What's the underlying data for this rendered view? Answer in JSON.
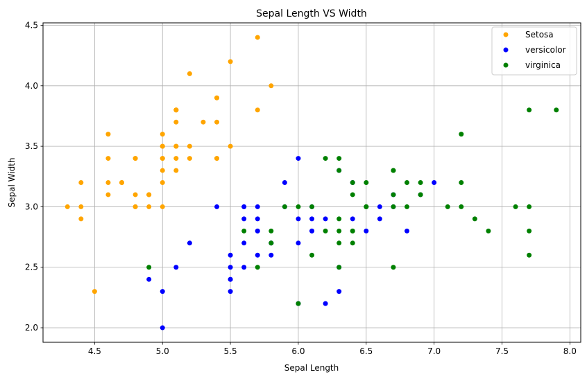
{
  "chart_data": {
    "type": "scatter",
    "title": "Sepal Length VS Width",
    "xlabel": "Sepal Length",
    "ylabel": "Sepal Width",
    "xlim": [
      4.12,
      8.08
    ],
    "ylim": [
      1.88,
      4.52
    ],
    "xticks": [
      "4.5",
      "5.0",
      "5.5",
      "6.0",
      "6.5",
      "7.0",
      "7.5",
      "8.0"
    ],
    "yticks": [
      "2.0",
      "2.5",
      "3.0",
      "3.5",
      "4.0",
      "4.5"
    ],
    "grid": true,
    "legend_position": "top-right",
    "series": [
      {
        "name": "Setosa",
        "color": "#ffa500",
        "points": [
          [
            5.1,
            3.5
          ],
          [
            4.9,
            3.0
          ],
          [
            4.7,
            3.2
          ],
          [
            4.6,
            3.1
          ],
          [
            5.0,
            3.6
          ],
          [
            5.4,
            3.9
          ],
          [
            4.6,
            3.4
          ],
          [
            5.0,
            3.4
          ],
          [
            4.4,
            2.9
          ],
          [
            4.9,
            3.1
          ],
          [
            5.4,
            3.7
          ],
          [
            4.8,
            3.4
          ],
          [
            4.8,
            3.0
          ],
          [
            4.3,
            3.0
          ],
          [
            5.8,
            4.0
          ],
          [
            5.7,
            4.4
          ],
          [
            5.4,
            3.9
          ],
          [
            5.1,
            3.5
          ],
          [
            5.7,
            3.8
          ],
          [
            5.1,
            3.8
          ],
          [
            5.4,
            3.4
          ],
          [
            5.1,
            3.7
          ],
          [
            4.6,
            3.6
          ],
          [
            5.1,
            3.3
          ],
          [
            4.8,
            3.4
          ],
          [
            5.0,
            3.0
          ],
          [
            5.0,
            3.4
          ],
          [
            5.2,
            3.5
          ],
          [
            5.2,
            3.4
          ],
          [
            4.7,
            3.2
          ],
          [
            4.8,
            3.1
          ],
          [
            5.4,
            3.4
          ],
          [
            5.2,
            4.1
          ],
          [
            5.5,
            4.2
          ],
          [
            4.9,
            3.1
          ],
          [
            5.0,
            3.2
          ],
          [
            5.5,
            3.5
          ],
          [
            4.9,
            3.1
          ],
          [
            4.4,
            3.0
          ],
          [
            5.1,
            3.4
          ],
          [
            5.0,
            3.5
          ],
          [
            4.5,
            2.3
          ],
          [
            4.4,
            3.2
          ],
          [
            5.0,
            3.5
          ],
          [
            5.1,
            3.8
          ],
          [
            4.8,
            3.0
          ],
          [
            5.1,
            3.8
          ],
          [
            4.6,
            3.2
          ],
          [
            5.3,
            3.7
          ],
          [
            5.0,
            3.3
          ]
        ]
      },
      {
        "name": "versicolor",
        "color": "#0000ff",
        "points": [
          [
            7.0,
            3.2
          ],
          [
            6.4,
            3.2
          ],
          [
            6.9,
            3.1
          ],
          [
            5.5,
            2.3
          ],
          [
            6.5,
            2.8
          ],
          [
            5.7,
            2.8
          ],
          [
            6.3,
            3.3
          ],
          [
            4.9,
            2.4
          ],
          [
            6.6,
            2.9
          ],
          [
            5.2,
            2.7
          ],
          [
            5.0,
            2.0
          ],
          [
            5.9,
            3.0
          ],
          [
            6.0,
            2.2
          ],
          [
            6.1,
            2.9
          ],
          [
            5.6,
            2.9
          ],
          [
            6.7,
            3.1
          ],
          [
            5.6,
            3.0
          ],
          [
            5.8,
            2.7
          ],
          [
            6.2,
            2.2
          ],
          [
            5.6,
            2.5
          ],
          [
            5.9,
            3.2
          ],
          [
            6.1,
            2.8
          ],
          [
            6.3,
            2.5
          ],
          [
            6.1,
            2.8
          ],
          [
            6.4,
            2.9
          ],
          [
            6.6,
            3.0
          ],
          [
            6.8,
            2.8
          ],
          [
            6.7,
            3.0
          ],
          [
            6.0,
            2.9
          ],
          [
            5.7,
            2.6
          ],
          [
            5.5,
            2.4
          ],
          [
            5.5,
            2.4
          ],
          [
            5.8,
            2.7
          ],
          [
            6.0,
            2.7
          ],
          [
            5.4,
            3.0
          ],
          [
            6.0,
            3.4
          ],
          [
            6.7,
            3.1
          ],
          [
            6.3,
            2.3
          ],
          [
            5.6,
            3.0
          ],
          [
            5.5,
            2.5
          ],
          [
            5.5,
            2.6
          ],
          [
            6.1,
            3.0
          ],
          [
            5.8,
            2.6
          ],
          [
            5.0,
            2.3
          ],
          [
            5.6,
            2.7
          ],
          [
            5.7,
            3.0
          ],
          [
            5.7,
            2.9
          ],
          [
            6.2,
            2.9
          ],
          [
            5.1,
            2.5
          ],
          [
            5.7,
            2.8
          ]
        ]
      },
      {
        "name": "virginica",
        "color": "#008000",
        "points": [
          [
            6.3,
            3.3
          ],
          [
            5.8,
            2.7
          ],
          [
            7.1,
            3.0
          ],
          [
            6.3,
            2.9
          ],
          [
            6.5,
            3.0
          ],
          [
            7.6,
            3.0
          ],
          [
            4.9,
            2.5
          ],
          [
            7.3,
            2.9
          ],
          [
            6.7,
            2.5
          ],
          [
            7.2,
            3.6
          ],
          [
            6.5,
            3.2
          ],
          [
            6.4,
            2.7
          ],
          [
            6.8,
            3.0
          ],
          [
            5.7,
            2.5
          ],
          [
            5.8,
            2.8
          ],
          [
            6.4,
            3.2
          ],
          [
            6.5,
            3.0
          ],
          [
            7.7,
            3.8
          ],
          [
            7.7,
            2.6
          ],
          [
            6.0,
            2.2
          ],
          [
            6.9,
            3.2
          ],
          [
            5.6,
            2.8
          ],
          [
            7.7,
            2.8
          ],
          [
            6.3,
            2.7
          ],
          [
            6.7,
            3.3
          ],
          [
            7.2,
            3.2
          ],
          [
            6.2,
            2.8
          ],
          [
            6.1,
            3.0
          ],
          [
            6.4,
            2.8
          ],
          [
            7.2,
            3.0
          ],
          [
            7.4,
            2.8
          ],
          [
            7.9,
            3.8
          ],
          [
            6.4,
            2.8
          ],
          [
            6.3,
            2.8
          ],
          [
            6.1,
            2.6
          ],
          [
            7.7,
            3.0
          ],
          [
            6.3,
            3.4
          ],
          [
            6.4,
            3.1
          ],
          [
            6.0,
            3.0
          ],
          [
            6.9,
            3.1
          ],
          [
            6.7,
            3.1
          ],
          [
            6.9,
            3.1
          ],
          [
            5.8,
            2.7
          ],
          [
            6.8,
            3.2
          ],
          [
            6.7,
            3.3
          ],
          [
            6.7,
            3.0
          ],
          [
            6.3,
            2.5
          ],
          [
            6.5,
            3.0
          ],
          [
            6.2,
            3.4
          ],
          [
            5.9,
            3.0
          ]
        ]
      }
    ]
  }
}
